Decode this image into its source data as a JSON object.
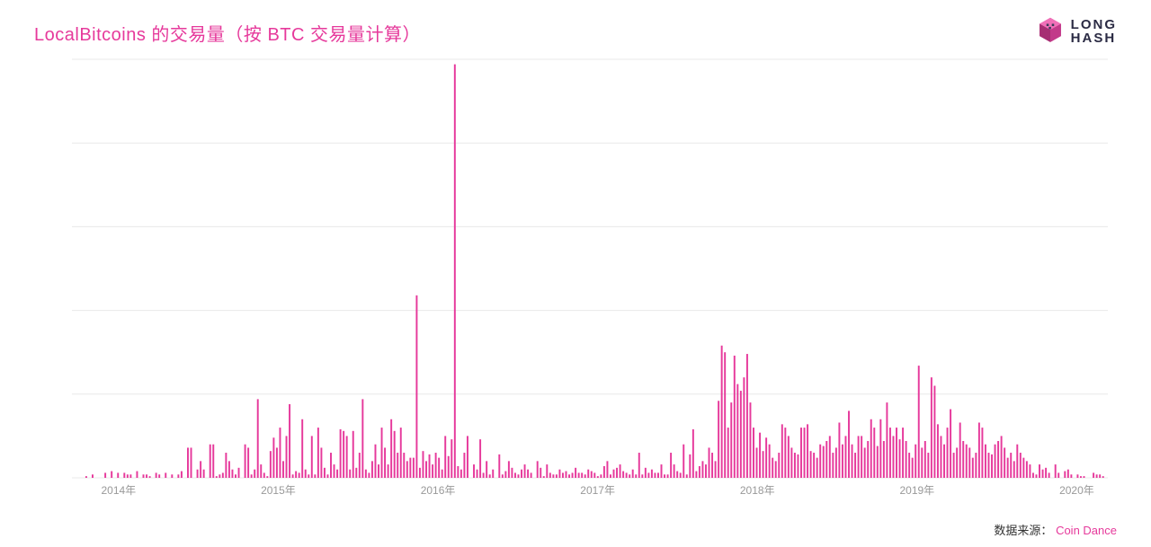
{
  "title": "LocalBitcoins 的交易量（按 BTC 交易量计算）",
  "logo": {
    "line1": "LONG",
    "line2": "HASH"
  },
  "footer": {
    "label": "数据来源：",
    "source": "Coin Dance"
  },
  "chart": {
    "type": "bar",
    "background_color": "#ffffff",
    "bar_color": "#e6399b",
    "grid_color": "#e8e8e8",
    "axis_text_color": "#999999",
    "title_color": "#e6399b",
    "title_fontsize": 20,
    "label_fontsize": 12,
    "ylim": [
      0,
      250
    ],
    "ytick_step": 50,
    "yticks": [
      0,
      50,
      100,
      150,
      200,
      250
    ],
    "x_years": [
      2014,
      2015,
      2016,
      2017,
      2018,
      2019,
      2020
    ],
    "x_year_suffix": "年",
    "bar_width_ratio": 0.55,
    "values": [
      0,
      0,
      0,
      0,
      1,
      0,
      2,
      0,
      0,
      0,
      3,
      0,
      4,
      0,
      3,
      0,
      3,
      2,
      2,
      0,
      4,
      0,
      2,
      2,
      1,
      0,
      3,
      2,
      0,
      3,
      0,
      2,
      0,
      2,
      4,
      0,
      18,
      18,
      0,
      5,
      10,
      5,
      0,
      20,
      20,
      1,
      2,
      3,
      15,
      10,
      5,
      2,
      6,
      0,
      20,
      18,
      2,
      5,
      47,
      8,
      3,
      1,
      16,
      24,
      18,
      30,
      10,
      25,
      44,
      2,
      4,
      3,
      35,
      5,
      2,
      25,
      2,
      30,
      18,
      6,
      2,
      15,
      8,
      5,
      29,
      28,
      25,
      5,
      28,
      6,
      15,
      47,
      5,
      3,
      10,
      20,
      8,
      30,
      18,
      8,
      35,
      28,
      15,
      30,
      15,
      10,
      12,
      12,
      109,
      6,
      16,
      10,
      14,
      8,
      15,
      12,
      5,
      25,
      13,
      23,
      247,
      7,
      5,
      15,
      25,
      0,
      8,
      5,
      23,
      3,
      10,
      2,
      5,
      0,
      14,
      2,
      4,
      10,
      6,
      3,
      2,
      5,
      8,
      5,
      3,
      0,
      10,
      6,
      1,
      8,
      3,
      2,
      2,
      5,
      3,
      4,
      2,
      3,
      6,
      3,
      3,
      2,
      5,
      4,
      3,
      1,
      2,
      7,
      10,
      2,
      5,
      6,
      8,
      4,
      3,
      2,
      5,
      2,
      15,
      2,
      6,
      3,
      5,
      3,
      3,
      8,
      2,
      2,
      15,
      8,
      4,
      3,
      20,
      2,
      14,
      29,
      4,
      7,
      10,
      8,
      18,
      15,
      10,
      46,
      79,
      75,
      30,
      45,
      73,
      56,
      52,
      60,
      74,
      45,
      30,
      18,
      27,
      16,
      24,
      20,
      12,
      10,
      15,
      32,
      30,
      25,
      18,
      15,
      14,
      30,
      30,
      32,
      16,
      15,
      12,
      20,
      19,
      22,
      25,
      15,
      18,
      33,
      20,
      25,
      40,
      20,
      15,
      25,
      25,
      18,
      22,
      35,
      30,
      19,
      35,
      22,
      45,
      30,
      25,
      30,
      23,
      30,
      22,
      15,
      12,
      20,
      67,
      18,
      22,
      15,
      60,
      55,
      32,
      25,
      20,
      30,
      41,
      15,
      18,
      33,
      22,
      20,
      18,
      12,
      15,
      33,
      30,
      20,
      15,
      14,
      20,
      22,
      25,
      18,
      12,
      15,
      10,
      20,
      15,
      12,
      10,
      8,
      3,
      2,
      8,
      5,
      6,
      3,
      0,
      8,
      3,
      0,
      4,
      5,
      2,
      0,
      2,
      1,
      1,
      0,
      0,
      3,
      2,
      2,
      1,
      0
    ]
  }
}
